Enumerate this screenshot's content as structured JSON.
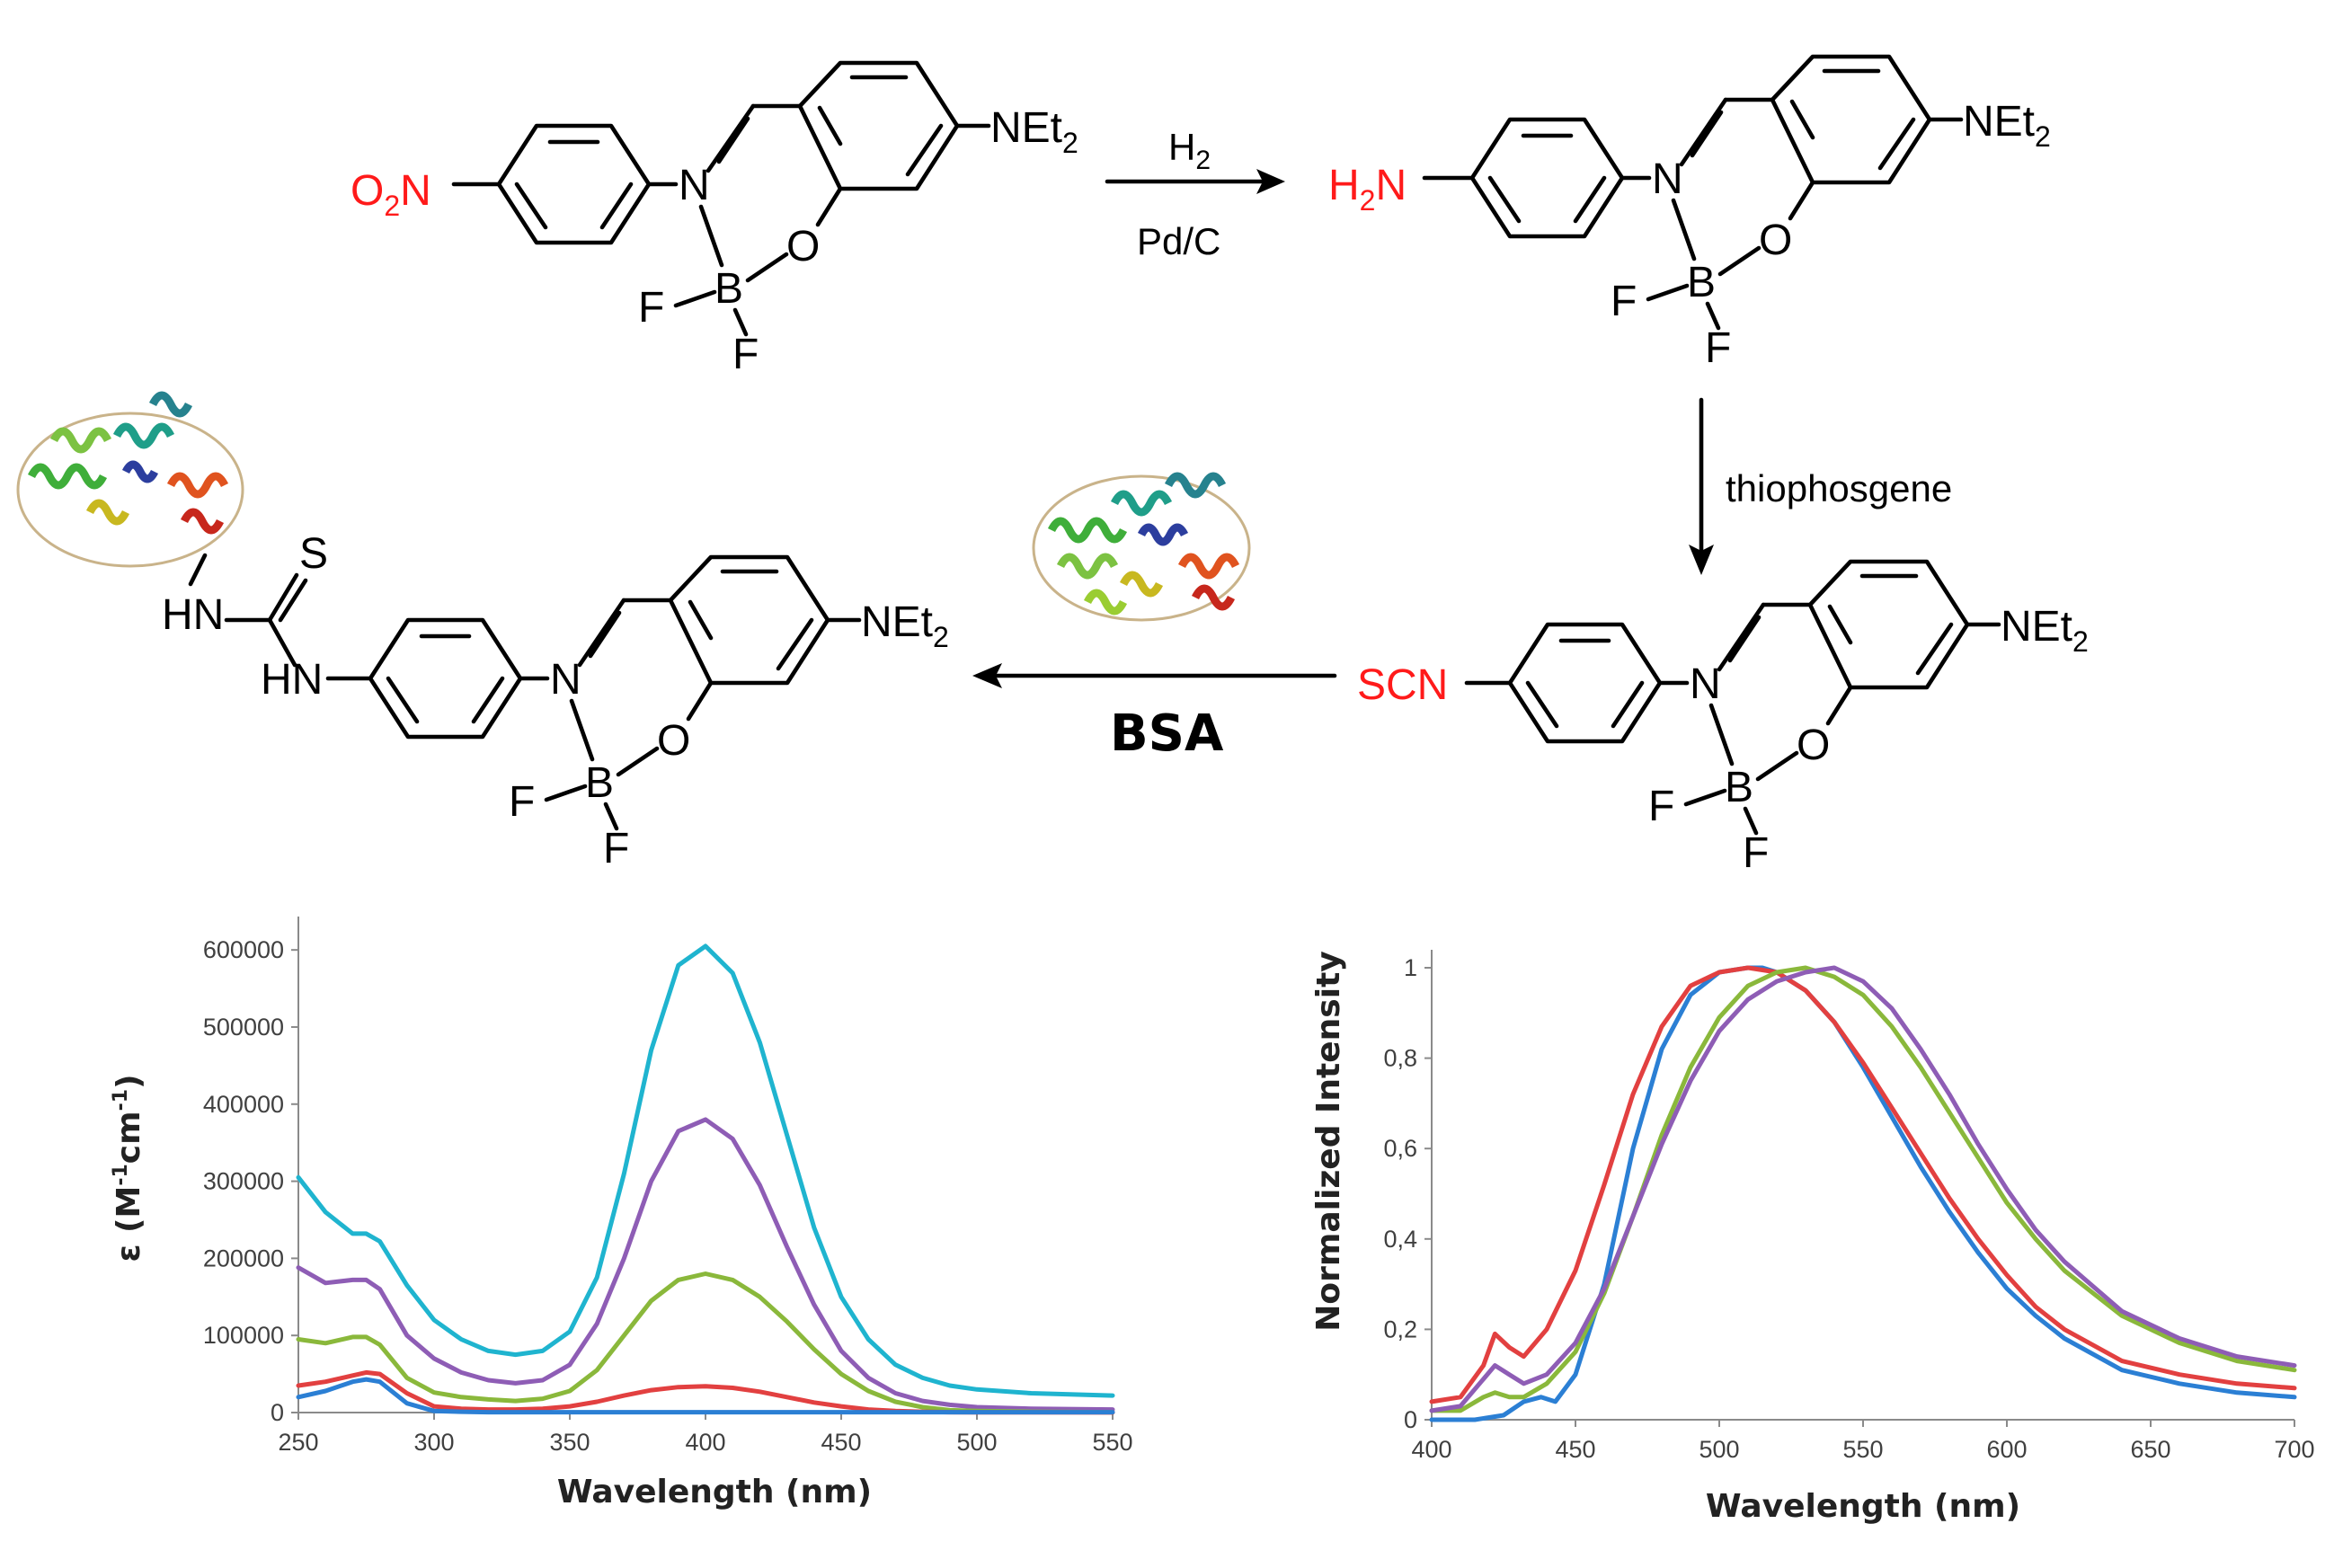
{
  "scheme": {
    "nitro_group": "O",
    "nitro_sub": "2",
    "nitro_N": "N",
    "amino_H": "H",
    "amino_sub": "2",
    "amino_N": "N",
    "isothiocyanate": "SCN",
    "NEt_main": "NEt",
    "NEt_sub": "2",
    "N_atom": "N",
    "O_atom": "O",
    "B_atom": "B",
    "F_atom": "F",
    "S_atom": "S",
    "HN_atom": "HN",
    "reagent_1": "H",
    "reagent_1_sub": "2",
    "catalyst_1": "Pd/C",
    "reagent_2": "thiophosgene",
    "reagent_3": "BSA",
    "colors": {
      "highlight": "#ff1a1a",
      "bond": "#000000"
    },
    "protein_icon": "protein-ribbon-icon"
  },
  "chart_data": [
    {
      "type": "line",
      "xlabel": "Wavelength (nm)",
      "ylabel_prefix": "ε (M",
      "ylabel_exp1": "-1",
      "ylabel_mid": "cm",
      "ylabel_exp2": "-1",
      "ylabel_suffix": ")",
      "xlim": [
        250,
        550
      ],
      "ylim": [
        0,
        620000
      ],
      "xticks": [
        "250",
        "300",
        "350",
        "400",
        "450",
        "500",
        "550"
      ],
      "yticks": [
        "0",
        "100000",
        "200000",
        "300000",
        "400000",
        "500000",
        "600000"
      ],
      "series": [
        {
          "color": "#1fb4cf",
          "x": [
            250,
            260,
            270,
            275,
            280,
            290,
            300,
            310,
            320,
            330,
            340,
            350,
            360,
            370,
            380,
            390,
            400,
            410,
            420,
            430,
            440,
            450,
            460,
            470,
            480,
            490,
            500,
            520,
            550
          ],
          "values": [
            305000,
            260000,
            232000,
            232000,
            222000,
            165000,
            120000,
            95000,
            80000,
            75000,
            80000,
            105000,
            175000,
            310000,
            470000,
            580000,
            605000,
            570000,
            480000,
            360000,
            240000,
            150000,
            95000,
            62000,
            45000,
            35000,
            30000,
            25000,
            22000
          ]
        },
        {
          "color": "#8e5db5",
          "x": [
            250,
            260,
            270,
            275,
            280,
            290,
            300,
            310,
            320,
            330,
            340,
            350,
            360,
            370,
            380,
            390,
            400,
            410,
            420,
            430,
            440,
            450,
            460,
            470,
            480,
            490,
            500,
            520,
            550
          ],
          "values": [
            188000,
            168000,
            172000,
            172000,
            160000,
            100000,
            70000,
            52000,
            42000,
            38000,
            42000,
            62000,
            115000,
            200000,
            300000,
            365000,
            380000,
            355000,
            295000,
            215000,
            140000,
            80000,
            45000,
            25000,
            15000,
            10000,
            7000,
            5000,
            4000
          ]
        },
        {
          "color": "#8ab83b",
          "x": [
            250,
            260,
            270,
            275,
            280,
            290,
            300,
            310,
            320,
            330,
            340,
            350,
            360,
            370,
            380,
            390,
            400,
            410,
            420,
            430,
            440,
            450,
            460,
            470,
            480,
            490,
            500,
            520,
            550
          ],
          "values": [
            95000,
            90000,
            98000,
            98000,
            88000,
            45000,
            26000,
            20000,
            17000,
            15000,
            18000,
            28000,
            55000,
            100000,
            145000,
            172000,
            180000,
            172000,
            150000,
            118000,
            82000,
            50000,
            28000,
            14000,
            7000,
            3000,
            2000,
            1000,
            500
          ]
        },
        {
          "color": "#e24040",
          "x": [
            250,
            260,
            270,
            275,
            280,
            290,
            300,
            310,
            320,
            330,
            340,
            350,
            360,
            370,
            380,
            390,
            400,
            410,
            420,
            430,
            440,
            450,
            460,
            470,
            480,
            490,
            500,
            520,
            550
          ],
          "values": [
            35000,
            40000,
            48000,
            52000,
            50000,
            25000,
            8000,
            5000,
            4000,
            4000,
            5000,
            8000,
            14000,
            22000,
            29000,
            33000,
            34000,
            32000,
            27000,
            20000,
            13000,
            8000,
            4000,
            2000,
            1000,
            500,
            300,
            200,
            100
          ]
        },
        {
          "color": "#2b7fd4",
          "x": [
            250,
            260,
            270,
            275,
            280,
            290,
            300,
            310,
            320,
            330,
            340,
            350,
            360,
            370,
            380,
            390,
            400,
            410,
            420,
            430,
            440,
            450,
            460,
            470,
            480,
            490,
            500,
            520,
            550
          ],
          "values": [
            20000,
            28000,
            40000,
            43000,
            40000,
            12000,
            2000,
            1000,
            500,
            500,
            500,
            500,
            500,
            500,
            500,
            500,
            500,
            500,
            500,
            500,
            500,
            500,
            500,
            500,
            500,
            500,
            500,
            500,
            500
          ]
        }
      ]
    },
    {
      "type": "line",
      "xlabel": "Wavelength (nm)",
      "ylabel": "Normalized Intensity",
      "xlim": [
        400,
        700
      ],
      "ylim": [
        0,
        1.0
      ],
      "xticks": [
        "400",
        "450",
        "500",
        "550",
        "600",
        "650",
        "700"
      ],
      "yticks": [
        "0",
        "0,2",
        "0,4",
        "0,6",
        "0,8",
        "1"
      ],
      "series": [
        {
          "color": "#2b7fd4",
          "x": [
            400,
            415,
            425,
            432,
            438,
            443,
            450,
            460,
            470,
            480,
            490,
            500,
            510,
            515,
            520,
            530,
            540,
            550,
            560,
            570,
            580,
            590,
            600,
            610,
            620,
            640,
            660,
            680,
            700
          ],
          "values": [
            0.0,
            0.0,
            0.01,
            0.04,
            0.05,
            0.04,
            0.1,
            0.3,
            0.6,
            0.82,
            0.94,
            0.99,
            1.0,
            1.0,
            0.99,
            0.95,
            0.88,
            0.78,
            0.67,
            0.56,
            0.46,
            0.37,
            0.29,
            0.23,
            0.18,
            0.11,
            0.08,
            0.06,
            0.05
          ]
        },
        {
          "color": "#e24040",
          "x": [
            400,
            410,
            418,
            422,
            427,
            432,
            440,
            450,
            460,
            470,
            480,
            490,
            500,
            510,
            520,
            530,
            540,
            550,
            560,
            570,
            580,
            590,
            600,
            610,
            620,
            640,
            660,
            680,
            700
          ],
          "values": [
            0.04,
            0.05,
            0.12,
            0.19,
            0.16,
            0.14,
            0.2,
            0.33,
            0.52,
            0.72,
            0.87,
            0.96,
            0.99,
            1.0,
            0.99,
            0.95,
            0.88,
            0.79,
            0.69,
            0.59,
            0.49,
            0.4,
            0.32,
            0.25,
            0.2,
            0.13,
            0.1,
            0.08,
            0.07
          ]
        },
        {
          "color": "#8ab83b",
          "x": [
            400,
            410,
            418,
            422,
            427,
            432,
            440,
            450,
            460,
            470,
            480,
            490,
            500,
            510,
            520,
            530,
            540,
            550,
            560,
            570,
            580,
            590,
            600,
            610,
            620,
            640,
            660,
            680,
            700
          ],
          "values": [
            0.02,
            0.02,
            0.05,
            0.06,
            0.05,
            0.05,
            0.08,
            0.15,
            0.28,
            0.45,
            0.63,
            0.78,
            0.89,
            0.96,
            0.99,
            1.0,
            0.98,
            0.94,
            0.87,
            0.78,
            0.68,
            0.58,
            0.48,
            0.4,
            0.33,
            0.23,
            0.17,
            0.13,
            0.11
          ]
        },
        {
          "color": "#8e5db5",
          "x": [
            400,
            410,
            418,
            422,
            427,
            432,
            440,
            450,
            460,
            470,
            480,
            490,
            500,
            510,
            520,
            530,
            540,
            550,
            560,
            570,
            580,
            590,
            600,
            610,
            620,
            640,
            660,
            680,
            700
          ],
          "values": [
            0.02,
            0.03,
            0.09,
            0.12,
            0.1,
            0.08,
            0.1,
            0.17,
            0.29,
            0.45,
            0.61,
            0.75,
            0.86,
            0.93,
            0.97,
            0.99,
            1.0,
            0.97,
            0.91,
            0.82,
            0.72,
            0.61,
            0.51,
            0.42,
            0.35,
            0.24,
            0.18,
            0.14,
            0.12
          ]
        }
      ]
    }
  ]
}
